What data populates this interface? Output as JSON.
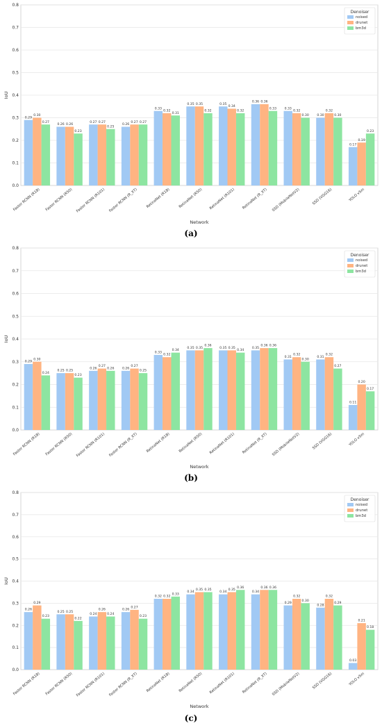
{
  "chart_data": [
    {
      "type": "bar",
      "panel_label": "(a)",
      "categories": [
        "Faster RCNN (R18)",
        "Faster RCNN (R50)",
        "Faster RCNN (R101)",
        "Faster RCNN (R_XT)",
        "RetinaNet (R18)",
        "RetinaNet (R50)",
        "RetinaNet (R101)",
        "RetinaNet (R_XT)",
        "SSD (MobileNetV2)",
        "SSD (VGG16)",
        "YOLO v5m"
      ],
      "series": [
        {
          "name": "noised",
          "values": [
            0.29,
            0.26,
            0.27,
            0.26,
            0.33,
            0.35,
            0.35,
            0.36,
            0.33,
            0.3,
            0.17
          ]
        },
        {
          "name": "drunet",
          "values": [
            0.3,
            0.26,
            0.27,
            0.27,
            0.32,
            0.35,
            0.34,
            0.36,
            0.32,
            0.32,
            0.19
          ]
        },
        {
          "name": "bm3d",
          "values": [
            0.27,
            0.23,
            0.25,
            0.27,
            0.31,
            0.32,
            0.32,
            0.33,
            0.3,
            0.3,
            0.23
          ]
        }
      ],
      "xlabel": "Network",
      "ylabel": "IoU",
      "ylim": [
        0,
        0.8
      ],
      "yticks": [
        "0.0",
        "0.1",
        "0.2",
        "0.3",
        "0.4",
        "0.5",
        "0.6",
        "0.7",
        "0.8"
      ],
      "legend": {
        "title": "Denoiser",
        "position": "top-right"
      },
      "grid": "horizontal"
    },
    {
      "type": "bar",
      "panel_label": "(b)",
      "categories": [
        "Faster RCNN (R18)",
        "Faster RCNN (R50)",
        "Faster RCNN (R101)",
        "Faster RCNN (R_XT)",
        "RetinaNet (R18)",
        "RetinaNet (R50)",
        "RetinaNet (R101)",
        "RetinaNet (R_XT)",
        "SSD (MobileNetV2)",
        "SSD (VGG16)",
        "YOLO v5m"
      ],
      "series": [
        {
          "name": "noised",
          "values": [
            0.29,
            0.25,
            0.26,
            0.26,
            0.33,
            0.35,
            0.35,
            0.35,
            0.31,
            0.31,
            0.11
          ]
        },
        {
          "name": "drunet",
          "values": [
            0.3,
            0.25,
            0.27,
            0.27,
            0.32,
            0.35,
            0.35,
            0.36,
            0.32,
            0.32,
            0.2
          ]
        },
        {
          "name": "bm3d",
          "values": [
            0.24,
            0.23,
            0.26,
            0.25,
            0.34,
            0.36,
            0.34,
            0.36,
            0.3,
            0.27,
            0.17
          ]
        }
      ],
      "xlabel": "Network",
      "ylabel": "IoU",
      "ylim": [
        0,
        0.8
      ],
      "yticks": [
        "0.0",
        "0.1",
        "0.2",
        "0.3",
        "0.4",
        "0.5",
        "0.6",
        "0.7",
        "0.8"
      ],
      "legend": {
        "title": "Denoiser",
        "position": "top-right"
      },
      "grid": "horizontal"
    },
    {
      "type": "bar",
      "panel_label": "(c)",
      "categories": [
        "Faster RCNN (R18)",
        "Faster RCNN (R50)",
        "Faster RCNN (R101)",
        "Faster RCNN (R_XT)",
        "RetinaNet (R18)",
        "RetinaNet (R50)",
        "RetinaNet (R101)",
        "RetinaNet (R_XT)",
        "SSD (MobileNetV2)",
        "SSD (VGG16)",
        "YOLO v5m"
      ],
      "series": [
        {
          "name": "noised",
          "values": [
            0.26,
            0.25,
            0.24,
            0.26,
            0.32,
            0.34,
            0.34,
            0.34,
            0.29,
            0.28,
            0.03
          ]
        },
        {
          "name": "drunet",
          "values": [
            0.29,
            0.25,
            0.26,
            0.27,
            0.32,
            0.35,
            0.35,
            0.36,
            0.32,
            0.32,
            0.21
          ]
        },
        {
          "name": "bm3d",
          "values": [
            0.23,
            0.22,
            0.24,
            0.23,
            0.33,
            0.35,
            0.36,
            0.36,
            0.3,
            0.29,
            0.18
          ]
        }
      ],
      "xlabel": "Network",
      "ylabel": "IoU",
      "ylim": [
        0,
        0.8
      ],
      "yticks": [
        "0.0",
        "0.1",
        "0.2",
        "0.3",
        "0.4",
        "0.5",
        "0.6",
        "0.7",
        "0.8"
      ],
      "legend": {
        "title": "Denoiser",
        "position": "top-right"
      },
      "grid": "horizontal"
    }
  ],
  "colors": {
    "noised": "#a1c9f4",
    "drunet": "#ffb482",
    "bm3d": "#8de5a1",
    "grid": "#e6e6e6",
    "axes_border": "#cccccc"
  }
}
